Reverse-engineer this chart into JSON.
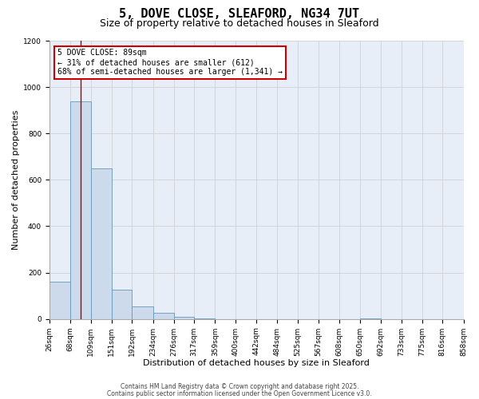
{
  "title": "5, DOVE CLOSE, SLEAFORD, NG34 7UT",
  "subtitle": "Size of property relative to detached houses in Sleaford",
  "xlabel": "Distribution of detached houses by size in Sleaford",
  "ylabel": "Number of detached properties",
  "bar_color": "#ccdaeb",
  "bar_edge_color": "#6699bb",
  "background_color": "#e8eef8",
  "grid_color": "#cccccc",
  "annotation_box_color": "#cc0000",
  "vline_color": "#aa0000",
  "bin_edges": [
    26,
    68,
    109,
    151,
    192,
    234,
    276,
    317,
    359,
    400,
    442,
    484,
    525,
    567,
    608,
    650,
    692,
    733,
    775,
    816,
    858
  ],
  "bin_labels": [
    "26sqm",
    "68sqm",
    "109sqm",
    "151sqm",
    "192sqm",
    "234sqm",
    "276sqm",
    "317sqm",
    "359sqm",
    "400sqm",
    "442sqm",
    "484sqm",
    "525sqm",
    "567sqm",
    "608sqm",
    "650sqm",
    "692sqm",
    "733sqm",
    "775sqm",
    "816sqm",
    "858sqm"
  ],
  "counts": [
    160,
    940,
    650,
    125,
    55,
    25,
    10,
    3,
    0,
    0,
    0,
    0,
    0,
    0,
    0,
    1,
    0,
    0,
    0,
    0
  ],
  "ylim": [
    0,
    1200
  ],
  "yticks": [
    0,
    200,
    400,
    600,
    800,
    1000,
    1200
  ],
  "vline_x": 89,
  "annotation_title": "5 DOVE CLOSE: 89sqm",
  "annotation_line1": "← 31% of detached houses are smaller (612)",
  "annotation_line2": "68% of semi-detached houses are larger (1,341) →",
  "footer1": "Contains HM Land Registry data © Crown copyright and database right 2025.",
  "footer2": "Contains public sector information licensed under the Open Government Licence v3.0.",
  "title_fontsize": 11,
  "subtitle_fontsize": 9,
  "label_fontsize": 8,
  "tick_fontsize": 6.5,
  "annot_fontsize": 7,
  "footer_fontsize": 5.5
}
